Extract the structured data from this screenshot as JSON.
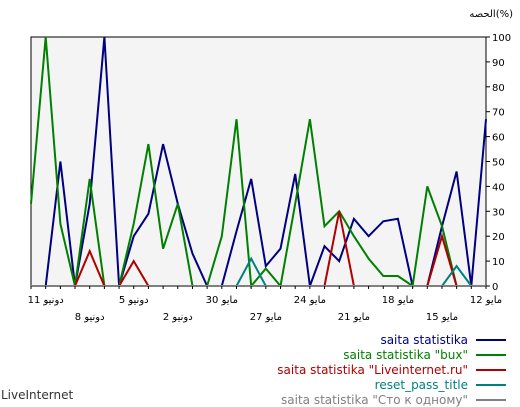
{
  "watermark": "LiveInternet",
  "chart_data": {
    "type": "line",
    "y_unit_label": "الحصه(%)",
    "ylim": [
      0,
      100
    ],
    "yticks": [
      0,
      10,
      20,
      30,
      40,
      50,
      60,
      70,
      80,
      90,
      100
    ],
    "grid": false,
    "plot_background": "#f4f4f4",
    "x_start": "2009-06-12",
    "x_end": "2009-05-12",
    "x_step_days": -1,
    "x_tick_labels": [
      {
        "date": "2009-06-11",
        "label": "11 دونيو"
      },
      {
        "date": "2009-06-08",
        "label": "8 دونيو"
      },
      {
        "date": "2009-06-05",
        "label": "5 دونيو"
      },
      {
        "date": "2009-06-02",
        "label": "2 دونيو"
      },
      {
        "date": "2009-05-30",
        "label": "30 مايو"
      },
      {
        "date": "2009-05-27",
        "label": "27 مايو"
      },
      {
        "date": "2009-05-24",
        "label": "24 مايو"
      },
      {
        "date": "2009-05-21",
        "label": "21 مايو"
      },
      {
        "date": "2009-05-18",
        "label": "18 مايو"
      },
      {
        "date": "2009-05-15",
        "label": "15 مايو"
      },
      {
        "date": "2009-05-12",
        "label": "12 مايو"
      }
    ],
    "series": [
      {
        "name": "saita statistika",
        "color": "#000080",
        "values": [
          0,
          0,
          50,
          0,
          33,
          100,
          0,
          20,
          29,
          57,
          33,
          13,
          0,
          0,
          22,
          43,
          8,
          15,
          45,
          0,
          16,
          10,
          27,
          20,
          26,
          27,
          0,
          0,
          24,
          46,
          0,
          67
        ]
      },
      {
        "name": "saita statistika \"bux\"",
        "color": "#008000",
        "values": [
          33,
          100,
          25,
          0,
          43,
          0,
          0,
          25,
          57,
          15,
          33,
          0,
          0,
          20,
          67,
          0,
          7,
          0,
          33,
          67,
          24,
          30,
          20,
          11,
          4,
          4,
          0,
          40,
          24,
          0,
          0,
          0
        ]
      },
      {
        "name": "saita statistika \"Liveinternet.ru\"",
        "color": "#b00000",
        "values": [
          0,
          0,
          0,
          0,
          14,
          0,
          0,
          10,
          0,
          0,
          0,
          0,
          0,
          0,
          0,
          0,
          0,
          0,
          0,
          0,
          0,
          30,
          0,
          0,
          0,
          0,
          0,
          0,
          20,
          0,
          0,
          0
        ]
      },
      {
        "name": "reset_pass_title",
        "color": "#008080",
        "values": [
          0,
          0,
          0,
          0,
          0,
          0,
          0,
          0,
          0,
          0,
          0,
          0,
          0,
          0,
          0,
          11,
          0,
          0,
          0,
          0,
          0,
          0,
          0,
          0,
          0,
          0,
          0,
          0,
          0,
          8,
          0,
          0
        ]
      },
      {
        "name": "saita statistika \"Сто к одному\"",
        "color": "#808080",
        "values": [
          0,
          0,
          0,
          0,
          0,
          0,
          0,
          0,
          0,
          0,
          0,
          0,
          0,
          0,
          0,
          0,
          0,
          0,
          0,
          0,
          0,
          0,
          0,
          0,
          0,
          0,
          0,
          0,
          0,
          0,
          0,
          0
        ]
      }
    ]
  }
}
